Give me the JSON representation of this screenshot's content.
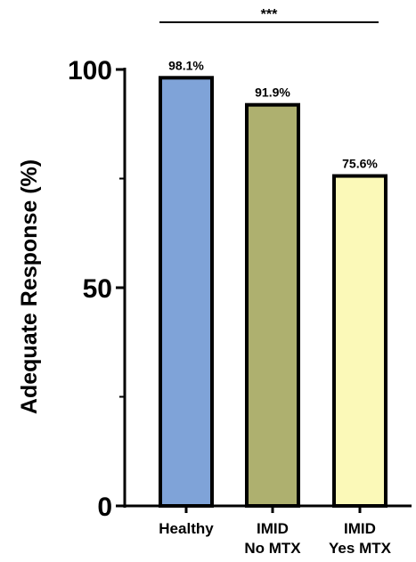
{
  "chart_data": {
    "type": "bar",
    "categories": [
      [
        "Healthy"
      ],
      [
        "IMID",
        "No MTX"
      ],
      [
        "IMID",
        "Yes MTX"
      ]
    ],
    "values": [
      98.1,
      91.9,
      75.6
    ],
    "data_labels": [
      "98.1%",
      "91.9%",
      "75.6%"
    ],
    "colors": [
      "#7fa3d8",
      "#aeb06f",
      "#fbf9b8"
    ],
    "ylabel": "Adequate Response (%)",
    "ylim": [
      0,
      100
    ],
    "yticks": [
      0,
      50,
      100
    ],
    "ytick_labels": [
      "0",
      "50",
      "100"
    ],
    "yminor_ticks": [
      25,
      75
    ],
    "significance": {
      "text": "***",
      "from_category": 0,
      "to_category": 2
    },
    "grid": false,
    "legend": "none"
  }
}
